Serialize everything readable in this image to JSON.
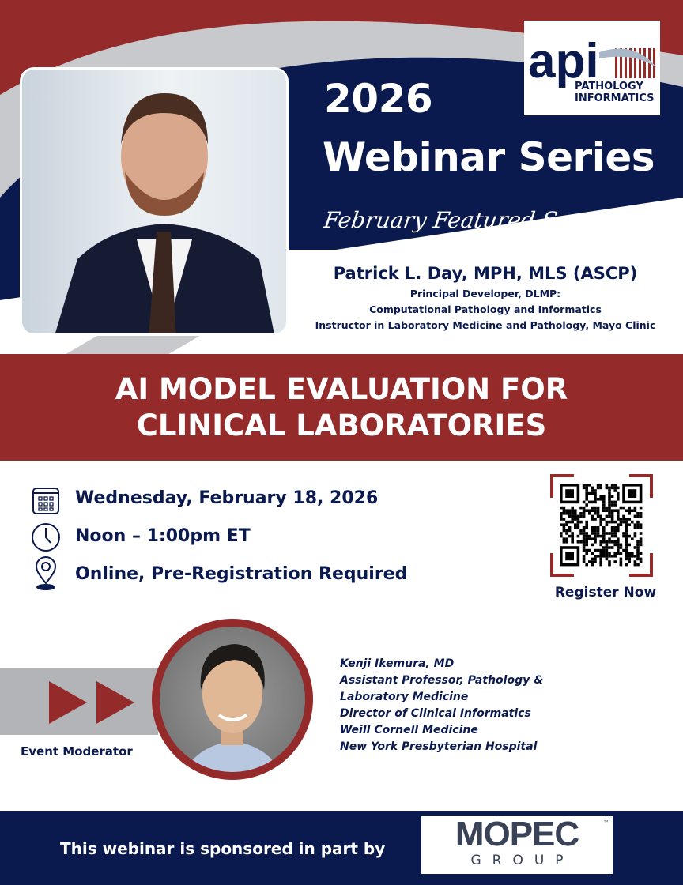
{
  "colors": {
    "red": "#952a2a",
    "navy": "#0b1a4e",
    "gray": "#c8c9cc"
  },
  "logo": {
    "mark": "api",
    "line1": "PATHOLOGY",
    "line2": "INFORMATICS"
  },
  "header": {
    "year": "2026",
    "series": "Webinar Series",
    "tagline": "February Featured Speaker"
  },
  "speaker": {
    "name": "Patrick L. Day, MPH, MLS (ASCP)",
    "titles": [
      "Principal Developer, DLMP:",
      "Computational Pathology and Informatics",
      "Instructor in Laboratory Medicine and Pathology, Mayo Clinic"
    ]
  },
  "talk": {
    "title_lines": [
      "AI MODEL EVALUATION FOR",
      "CLINICAL LABORATORIES"
    ]
  },
  "details": [
    {
      "icon": "calendar-icon",
      "text": "Wednesday, February 18, 2026"
    },
    {
      "icon": "clock-icon",
      "text": "Noon – 1:00pm ET"
    },
    {
      "icon": "location-pin-icon",
      "text": "Online, Pre-Registration Required"
    }
  ],
  "register": {
    "label": "Register Now",
    "icon": "qr-code-icon"
  },
  "moderator": {
    "label": "Event Moderator",
    "lines": [
      "Kenji Ikemura, MD",
      "Assistant Professor, Pathology &",
      "Laboratory Medicine",
      "Director of Clinical Informatics",
      "Weill Cornell Medicine",
      "New York Presbyterian Hospital"
    ]
  },
  "footer": {
    "text": "This webinar is sponsored in part by",
    "sponsor": {
      "name": "MOPEC",
      "sub": "GROUP",
      "tm": "™"
    }
  }
}
